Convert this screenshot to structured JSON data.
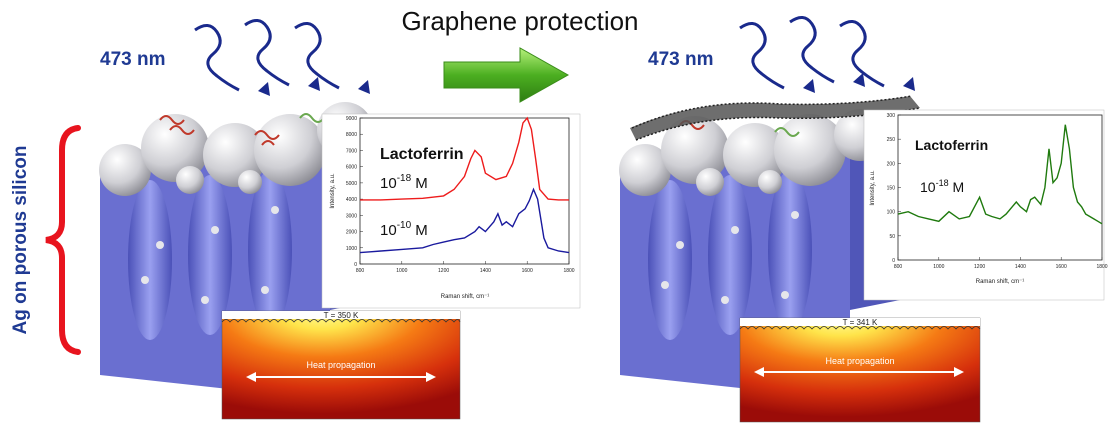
{
  "title": "Graphene protection",
  "laser_left": "473 nm",
  "laser_right": "473 nm",
  "side_label": "Ag on porous silicon",
  "colors": {
    "laser_text": "#1f3a93",
    "side_label": "#1f3a93",
    "brace": "#e8141e",
    "arrow": "#4caf21",
    "red_spectrum": "#ee1c1c",
    "blue_spectrum": "#1a1a9e",
    "green_spectrum": "#1f7a0e",
    "substrate": "#6a6fd0"
  },
  "left_chart": {
    "title": "Lactoferrin",
    "conc1_base": "10",
    "conc1_exp": "-18",
    "conc1_unit": " M",
    "conc2_base": "10",
    "conc2_exp": "-10",
    "conc2_unit": " M",
    "ylabel": "Intensity, a.u.",
    "xlabel": "Raman shift, cm⁻¹",
    "yticks": [
      "0",
      "1000",
      "2000",
      "3000",
      "4000",
      "5000",
      "6000",
      "7000",
      "8000",
      "9000"
    ],
    "xticks": [
      "800",
      "1000",
      "1200",
      "1400",
      "1600",
      "1800"
    ]
  },
  "right_chart": {
    "title": "Lactoferrin",
    "conc_base": "10",
    "conc_exp": "-18",
    "conc_unit": " M",
    "ylabel": "Intensity, a.u.",
    "xlabel": "Raman shift, cm⁻¹",
    "yticks": [
      "0",
      "50",
      "100",
      "150",
      "200",
      "250",
      "300"
    ],
    "xticks": [
      "800",
      "1000",
      "1200",
      "1400",
      "1600",
      "1800"
    ]
  },
  "heat_left": {
    "temp": "T = 350 K",
    "label": "Heat propagation"
  },
  "heat_right": {
    "temp": "T = 341 K",
    "label": "Heat propagation"
  },
  "chart_data": [
    {
      "type": "line",
      "title": "Lactoferrin",
      "xlabel": "Raman shift, cm⁻¹",
      "ylabel": "Intensity, a.u.",
      "xlim": [
        800,
        1800
      ],
      "ylim": [
        0,
        9000
      ],
      "series": [
        {
          "name": "10^-18 M",
          "x": [
            800,
            900,
            1000,
            1100,
            1200,
            1250,
            1300,
            1330,
            1350,
            1380,
            1400,
            1450,
            1500,
            1530,
            1560,
            1580,
            1600,
            1620,
            1640,
            1660,
            1700,
            1750,
            1800
          ],
          "y": [
            3950,
            3950,
            4000,
            4050,
            4200,
            4600,
            5400,
            6500,
            7000,
            6600,
            5600,
            5200,
            5400,
            6200,
            7500,
            8700,
            9000,
            8300,
            6500,
            4600,
            4000,
            3950,
            3950
          ]
        },
        {
          "name": "10^-10 M",
          "x": [
            800,
            850,
            900,
            1000,
            1100,
            1150,
            1200,
            1250,
            1300,
            1350,
            1370,
            1400,
            1440,
            1460,
            1480,
            1500,
            1530,
            1560,
            1590,
            1610,
            1630,
            1650,
            1680,
            1700,
            1750,
            1800
          ],
          "y": [
            700,
            750,
            800,
            900,
            1000,
            1200,
            1350,
            1500,
            1600,
            2000,
            2300,
            2000,
            2600,
            3100,
            2400,
            2600,
            2300,
            3100,
            3400,
            3900,
            4600,
            4000,
            1600,
            1000,
            800,
            700
          ]
        }
      ]
    },
    {
      "type": "line",
      "title": "Lactoferrin",
      "xlabel": "Raman shift, cm⁻¹",
      "ylabel": "Intensity, a.u.",
      "xlim": [
        800,
        1800
      ],
      "ylim": [
        0,
        300
      ],
      "series": [
        {
          "name": "10^-18 M",
          "x": [
            800,
            850,
            900,
            950,
            1000,
            1050,
            1100,
            1150,
            1200,
            1230,
            1260,
            1300,
            1330,
            1360,
            1380,
            1400,
            1430,
            1450,
            1470,
            1500,
            1520,
            1540,
            1560,
            1580,
            1600,
            1620,
            1640,
            1660,
            1680,
            1700,
            1720,
            1740,
            1760,
            1780,
            1800
          ],
          "y": [
            95,
            100,
            90,
            85,
            80,
            100,
            85,
            90,
            130,
            95,
            90,
            85,
            95,
            110,
            120,
            110,
            100,
            125,
            130,
            115,
            150,
            230,
            160,
            170,
            200,
            280,
            230,
            150,
            120,
            110,
            95,
            90,
            85,
            80,
            75
          ]
        }
      ]
    }
  ]
}
